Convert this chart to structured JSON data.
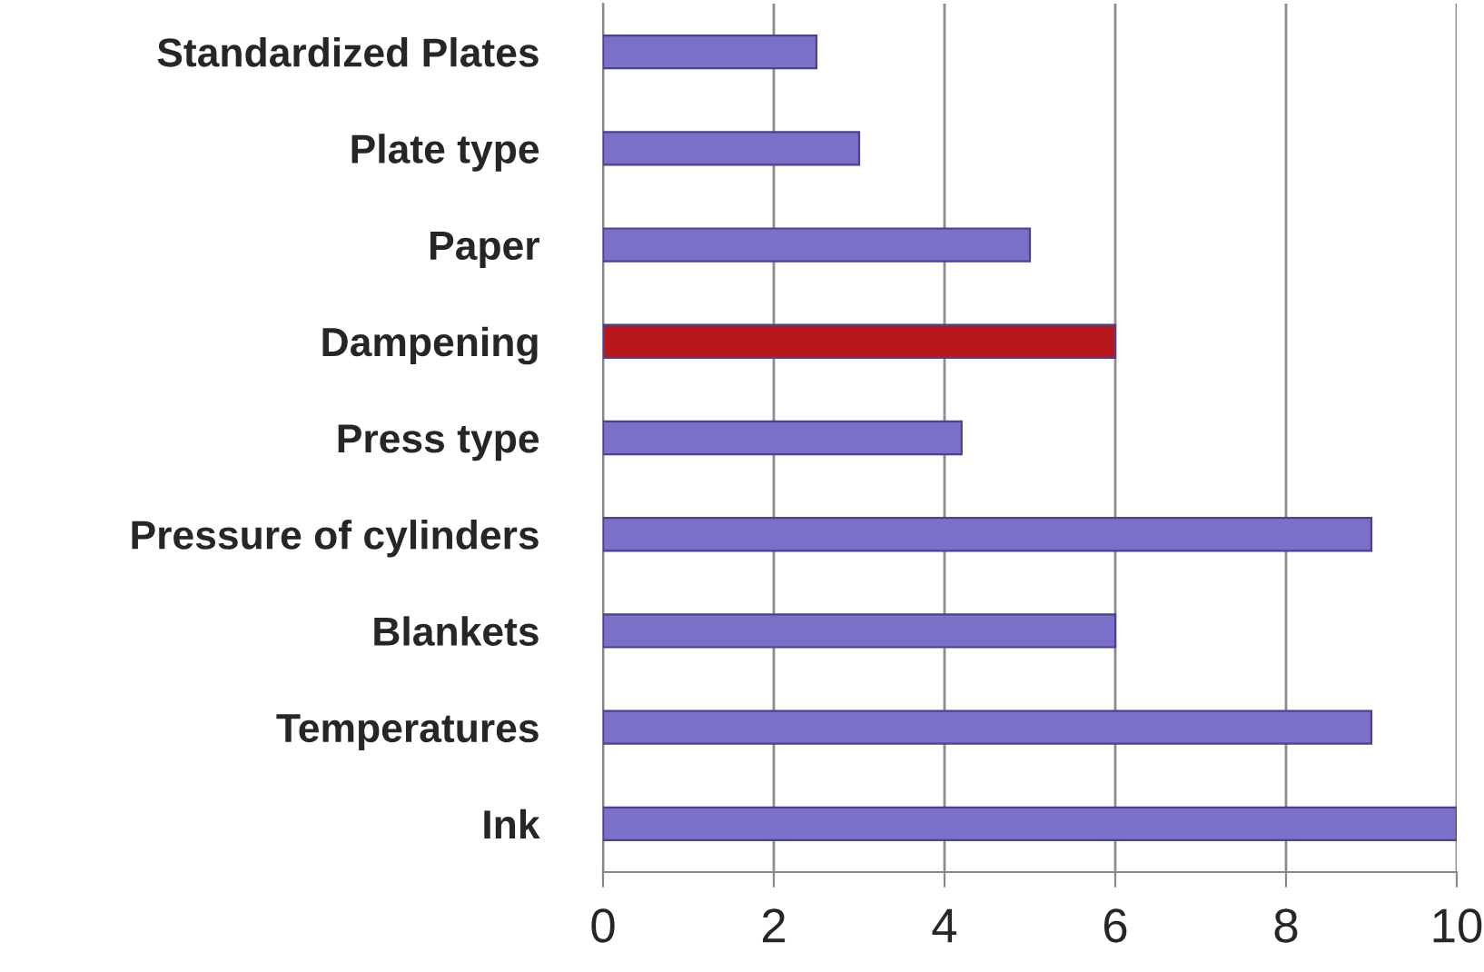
{
  "chart_data": {
    "type": "bar",
    "orientation": "horizontal",
    "categories": [
      "Standardized Plates",
      "Plate type",
      "Paper",
      "Dampening",
      "Press type",
      "Pressure of cylinders",
      "Blankets",
      "Temperatures",
      "Ink"
    ],
    "values": [
      2.5,
      3,
      5,
      6,
      4.2,
      9,
      6,
      9,
      10
    ],
    "colors": [
      "#7b70c8",
      "#7b70c8",
      "#7b70c8",
      "#b8181c",
      "#7b70c8",
      "#7b70c8",
      "#7b70c8",
      "#7b70c8",
      "#7b70c8"
    ],
    "xlim": [
      0,
      10
    ],
    "xticks": [
      0,
      2,
      4,
      6,
      8,
      10
    ],
    "grid": "x",
    "legend": false
  }
}
